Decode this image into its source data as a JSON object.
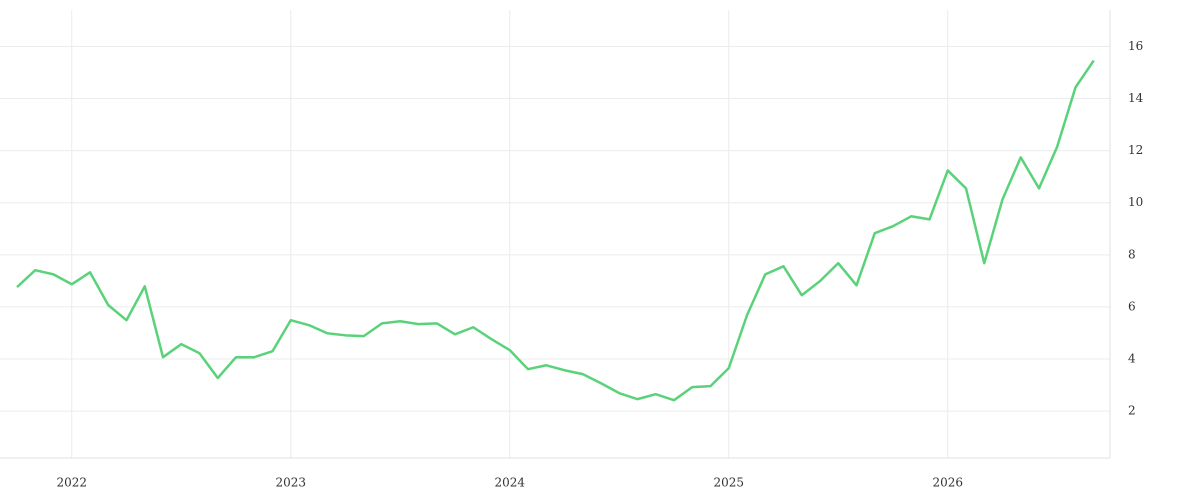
{
  "chart_data": {
    "type": "line",
    "categories": [
      null,
      null,
      null,
      "2022",
      null,
      null,
      null,
      null,
      null,
      null,
      null,
      null,
      null,
      null,
      null,
      "2023",
      null,
      null,
      null,
      null,
      null,
      null,
      null,
      null,
      null,
      null,
      null,
      "2024",
      null,
      null,
      null,
      null,
      null,
      null,
      null,
      null,
      null,
      null,
      null,
      "2025",
      null,
      null,
      null,
      null,
      null,
      null,
      null,
      null,
      null,
      null,
      null,
      "2026",
      null,
      null,
      null,
      null,
      null,
      null,
      null,
      null
    ],
    "values": [
      6.76,
      7.41,
      7.25,
      6.87,
      7.33,
      6.07,
      5.49,
      6.79,
      4.07,
      4.57,
      4.22,
      3.27,
      4.07,
      4.07,
      4.3,
      5.49,
      5.3,
      4.99,
      4.91,
      4.88,
      5.37,
      5.45,
      5.34,
      5.37,
      4.95,
      5.22,
      4.76,
      4.34,
      3.61,
      3.76,
      3.57,
      3.42,
      3.07,
      2.69,
      2.46,
      2.65,
      2.42,
      2.92,
      2.96,
      3.65,
      5.68,
      7.25,
      7.56,
      6.45,
      6.99,
      7.68,
      6.83,
      8.83,
      9.1,
      9.48,
      9.36,
      11.24,
      10.55,
      7.68,
      10.13,
      11.74,
      10.55,
      12.16,
      14.43,
      15.46
    ],
    "color": "#5ad27a",
    "ylim": [
      0.2,
      17.4
    ],
    "yticks": [
      2,
      4,
      6,
      8,
      10,
      12,
      14,
      16
    ],
    "grid": true
  }
}
